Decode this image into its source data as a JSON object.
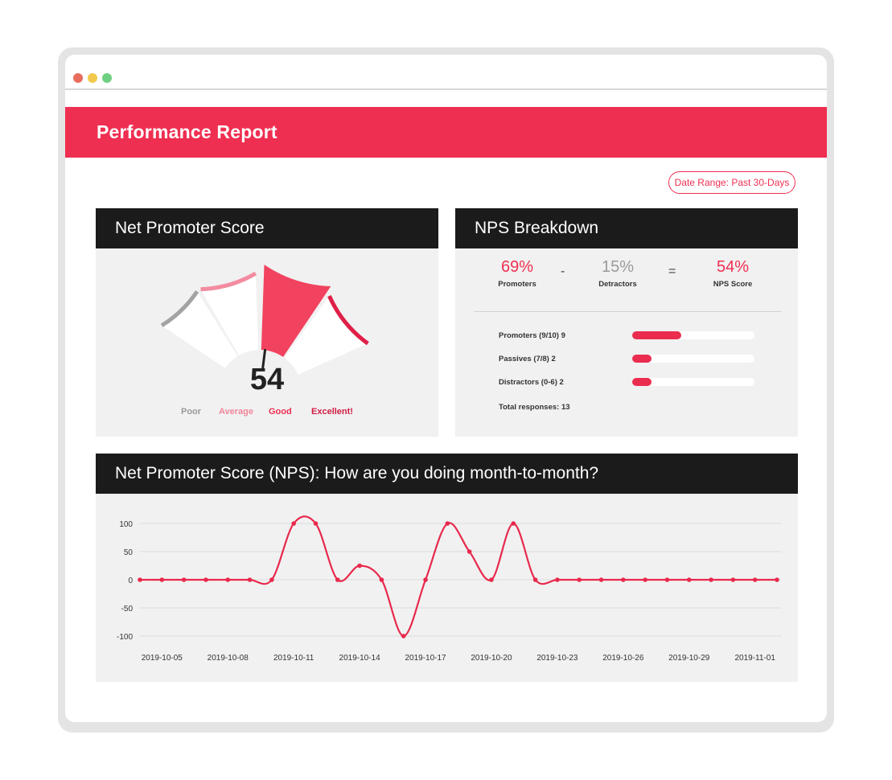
{
  "window": {
    "dots": [
      "#e86c5f",
      "#f2c94c",
      "#6fcf82"
    ]
  },
  "header": {
    "title": "Performance Report"
  },
  "date_range": "Date Range: Past 30-Days",
  "nps_card": {
    "title": "Net Promoter Score",
    "score": "54",
    "score_value": 54,
    "labels": [
      {
        "text": "Poor",
        "color": "#9a9a9a"
      },
      {
        "text": "Average",
        "color": "#f0869b"
      },
      {
        "text": "Good",
        "color": "#ef2f51"
      },
      {
        "text": "Excellent!",
        "color": "#d11e45"
      }
    ],
    "colors": {
      "poor": "#a3a3a3",
      "average": "#f38ca0",
      "good": "#f1435f",
      "excellent": "#df1f48"
    }
  },
  "breakdown_card": {
    "title": "NPS Breakdown",
    "promoters_pct": "69%",
    "promoters_label": "Promoters",
    "minus": "-",
    "detractors_pct": "15%",
    "detractors_label": "Detractors",
    "equals": "=",
    "nps_pct": "54%",
    "nps_label": "NPS Score",
    "rows": [
      {
        "label": "Promoters (9/10) 9",
        "fraction": 0.4
      },
      {
        "label": "Passives (7/8) 2",
        "fraction": 0.16
      },
      {
        "label": "Distractors (0-6) 2",
        "fraction": 0.16
      }
    ],
    "total": "Total responses: 13"
  },
  "trend_card": {
    "title": "Net Promoter Score (NPS): How are you doing month-to-month?"
  },
  "chart_data": {
    "type": "line",
    "title": "Net Promoter Score (NPS): How are you doing month-to-month?",
    "x": [
      "2019-10-04",
      "2019-10-05",
      "2019-10-06",
      "2019-10-07",
      "2019-10-08",
      "2019-10-09",
      "2019-10-10",
      "2019-10-11",
      "2019-10-12",
      "2019-10-13",
      "2019-10-14",
      "2019-10-15",
      "2019-10-16",
      "2019-10-17",
      "2019-10-18",
      "2019-10-19",
      "2019-10-20",
      "2019-10-21",
      "2019-10-22",
      "2019-10-23",
      "2019-10-24",
      "2019-10-25",
      "2019-10-26",
      "2019-10-27",
      "2019-10-28",
      "2019-10-29",
      "2019-10-30",
      "2019-10-31",
      "2019-11-01",
      "2019-11-02"
    ],
    "series": [
      {
        "values": [
          0,
          0,
          0,
          0,
          0,
          0,
          0,
          100,
          100,
          0,
          25,
          0,
          -100,
          0,
          100,
          50,
          0,
          100,
          0,
          0,
          0,
          0,
          0,
          0,
          0,
          0,
          0,
          0,
          0,
          0
        ],
        "color": "#e8294c"
      }
    ],
    "xticks": [
      "2019-10-05",
      "2019-10-08",
      "2019-10-11",
      "2019-10-14",
      "2019-10-17",
      "2019-10-20",
      "2019-10-23",
      "2019-10-26",
      "2019-10-29",
      "2019-11-01"
    ],
    "yticks": [
      "100",
      "50",
      "0",
      "-50",
      "-100"
    ],
    "ylim": [
      -100,
      100
    ],
    "grid": true
  }
}
